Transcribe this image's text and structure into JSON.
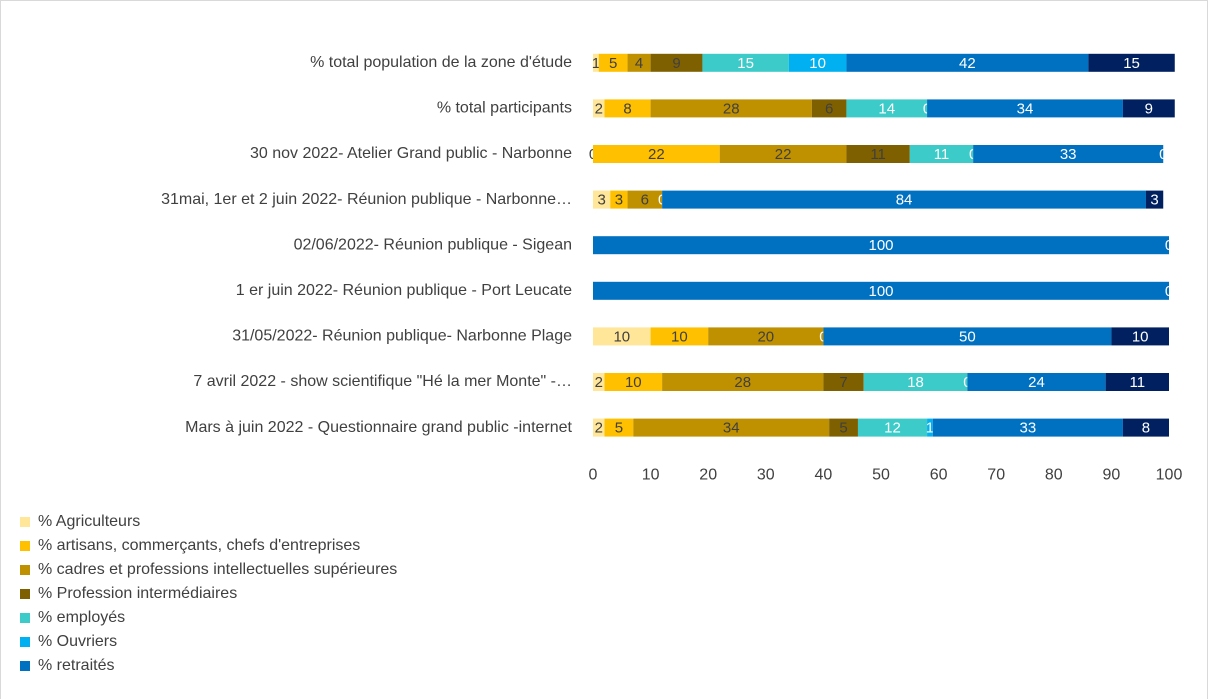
{
  "chart_data": {
    "type": "stacked_barh",
    "categories": [
      "% total population de la zone d'étude",
      "% total participants",
      "30 nov 2022- Atelier Grand public - Narbonne",
      "31mai, 1er et 2 juin 2022- Réunion publique - Narbonne…",
      "02/06/2022- Réunion publique - Sigean",
      "1 er juin 2022- Réunion publique - Port Leucate",
      "31/05/2022- Réunion publique- Narbonne Plage",
      "7 avril 2022 - show scientifique \"Hé la mer Monte\" -…",
      "Mars à juin 2022 - Questionnaire grand public -internet"
    ],
    "series": [
      {
        "name": "% Agriculteurs",
        "color": "#ffe699",
        "values": [
          1,
          2,
          0,
          3,
          null,
          null,
          10,
          2,
          2
        ]
      },
      {
        "name": "% artisans, commerçants, chefs d'entreprises",
        "color": "#ffc000",
        "values": [
          5,
          8,
          22,
          3,
          null,
          null,
          10,
          10,
          5
        ]
      },
      {
        "name": "% cadres et professions intellectuelles supérieures",
        "color": "#bf9000",
        "values": [
          4,
          28,
          22,
          6,
          null,
          null,
          20,
          28,
          34
        ]
      },
      {
        "name": "% Profession intermédiaires",
        "color": "#7f6000",
        "values": [
          9,
          6,
          11,
          null,
          null,
          null,
          null,
          7,
          5
        ]
      },
      {
        "name": "% employés",
        "color": "#3ccbc8",
        "values": [
          15,
          14,
          11,
          null,
          null,
          null,
          null,
          18,
          12
        ]
      },
      {
        "name": "% Ouvriers",
        "color": "#00b0f0",
        "values": [
          10,
          0,
          0,
          0,
          0,
          0,
          0,
          0,
          1
        ]
      },
      {
        "name": "% retraités",
        "color": "#0070c0",
        "values": [
          42,
          34,
          33,
          84,
          100,
          100,
          50,
          24,
          33
        ]
      },
      {
        "color": "#002060",
        "values": [
          15,
          9,
          0,
          3,
          0,
          0,
          10,
          11,
          8
        ]
      }
    ],
    "xlim": [
      0,
      100
    ],
    "xticks": [
      0,
      10,
      20,
      30,
      40,
      50,
      60,
      70,
      80,
      90,
      100
    ],
    "grid": false
  }
}
